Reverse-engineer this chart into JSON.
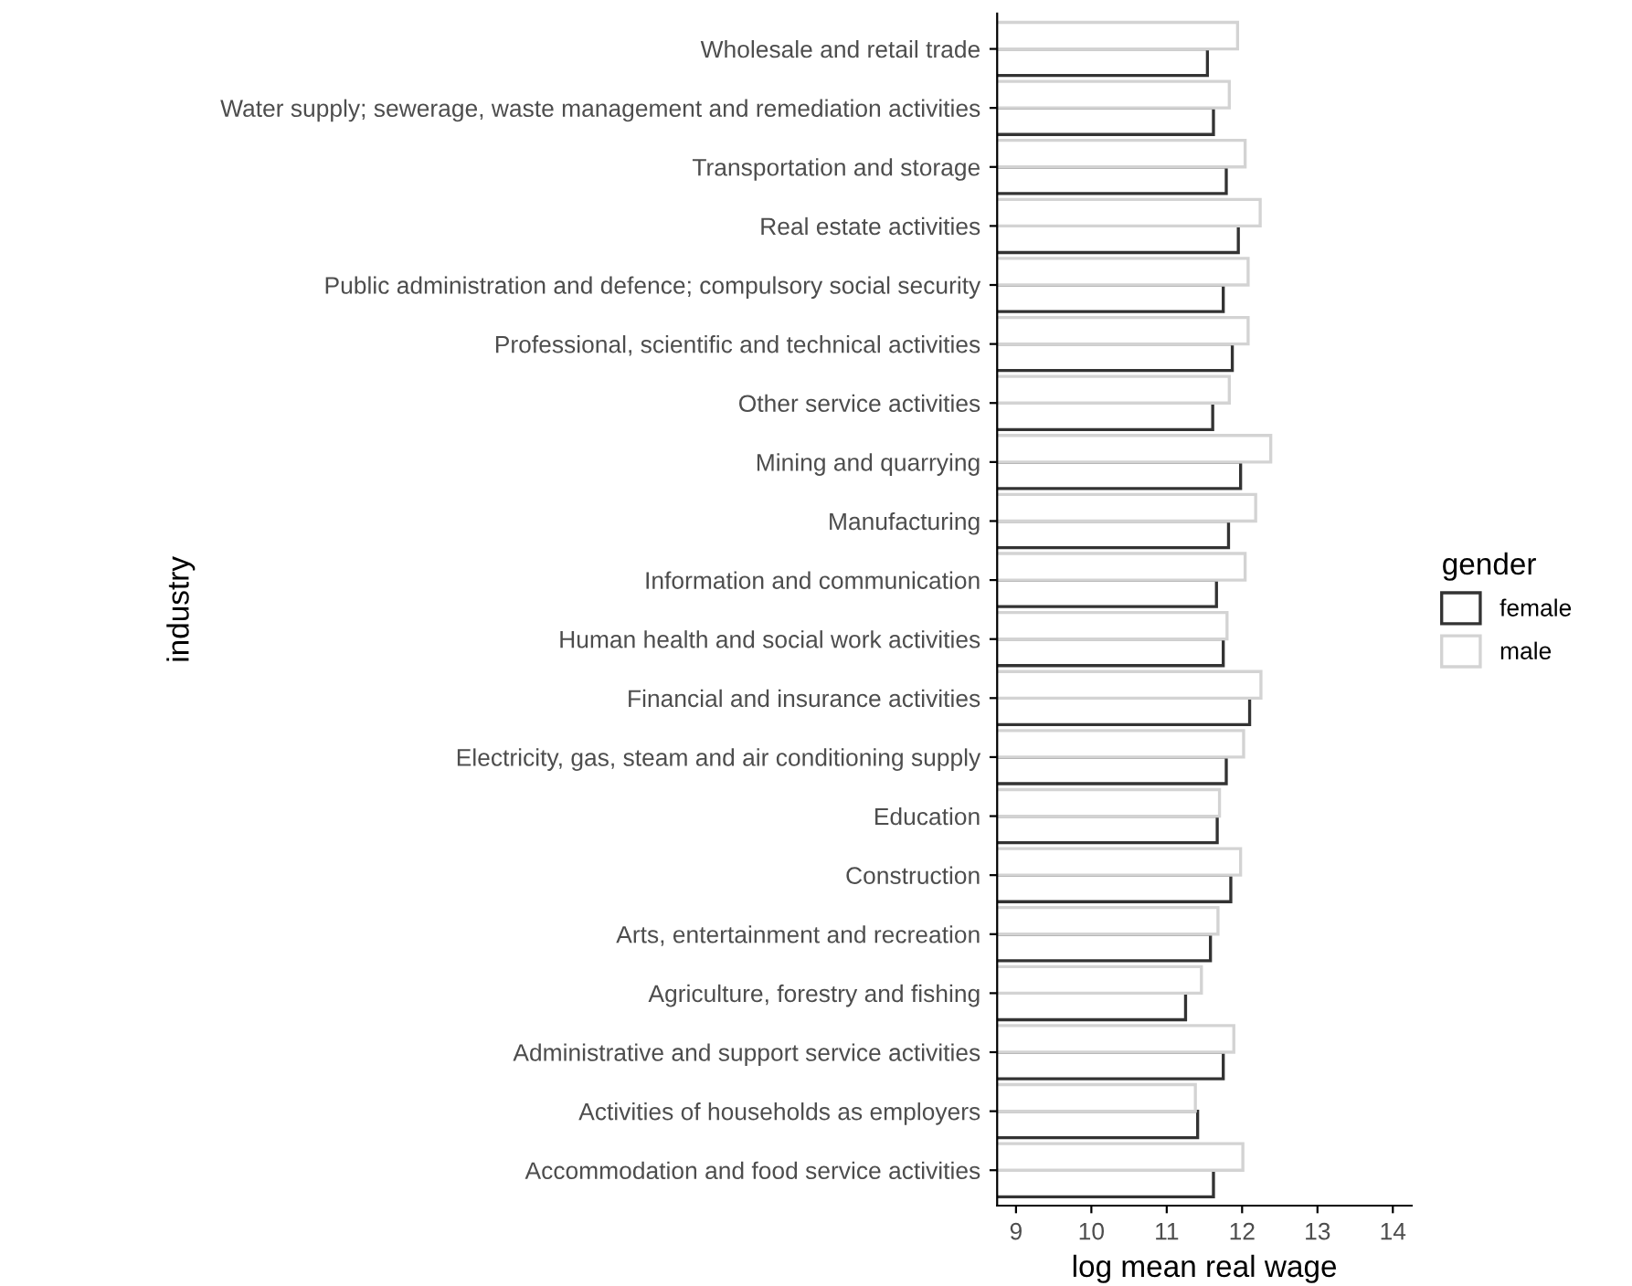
{
  "chart_data": {
    "type": "bar",
    "orientation": "horizontal",
    "xlabel": "log mean real wage",
    "ylabel": "industry",
    "legend_title": "gender",
    "legend": "right",
    "grid": false,
    "categories": [
      "Wholesale and retail trade",
      "Water supply; sewerage, waste management and remediation activities",
      "Transportation and storage",
      "Real estate activities",
      "Public administration and defence; compulsory social security",
      "Professional, scientific and technical activities",
      "Other service activities",
      "Mining and quarrying",
      "Manufacturing",
      "Information and communication",
      "Human health and social work activities",
      "Financial and insurance activities",
      "Electricity, gas, steam and air conditioning supply",
      "Education",
      "Construction",
      "Arts, entertainment and recreation",
      "Agriculture, forestry and fishing",
      "Administrative and support service activities",
      "Activities of households as employers",
      "Accommodation and food service activities"
    ],
    "series": [
      {
        "name": "female",
        "color": "#333333",
        "values": [
          11.54,
          11.62,
          11.79,
          11.95,
          11.75,
          11.87,
          11.61,
          11.98,
          11.82,
          11.66,
          11.75,
          12.1,
          11.79,
          11.67,
          11.85,
          11.58,
          11.25,
          11.75,
          11.41,
          11.62
        ]
      },
      {
        "name": "male",
        "color": "#d3d3d3",
        "values": [
          11.94,
          11.83,
          12.04,
          12.24,
          12.08,
          12.08,
          11.83,
          12.38,
          12.18,
          12.04,
          11.8,
          12.25,
          12.02,
          11.7,
          11.98,
          11.68,
          11.46,
          11.89,
          11.38,
          12.01
        ]
      }
    ],
    "xlim": [
      8.75,
      14.25
    ],
    "xticks": [
      9,
      10,
      11,
      12,
      13,
      14
    ]
  }
}
